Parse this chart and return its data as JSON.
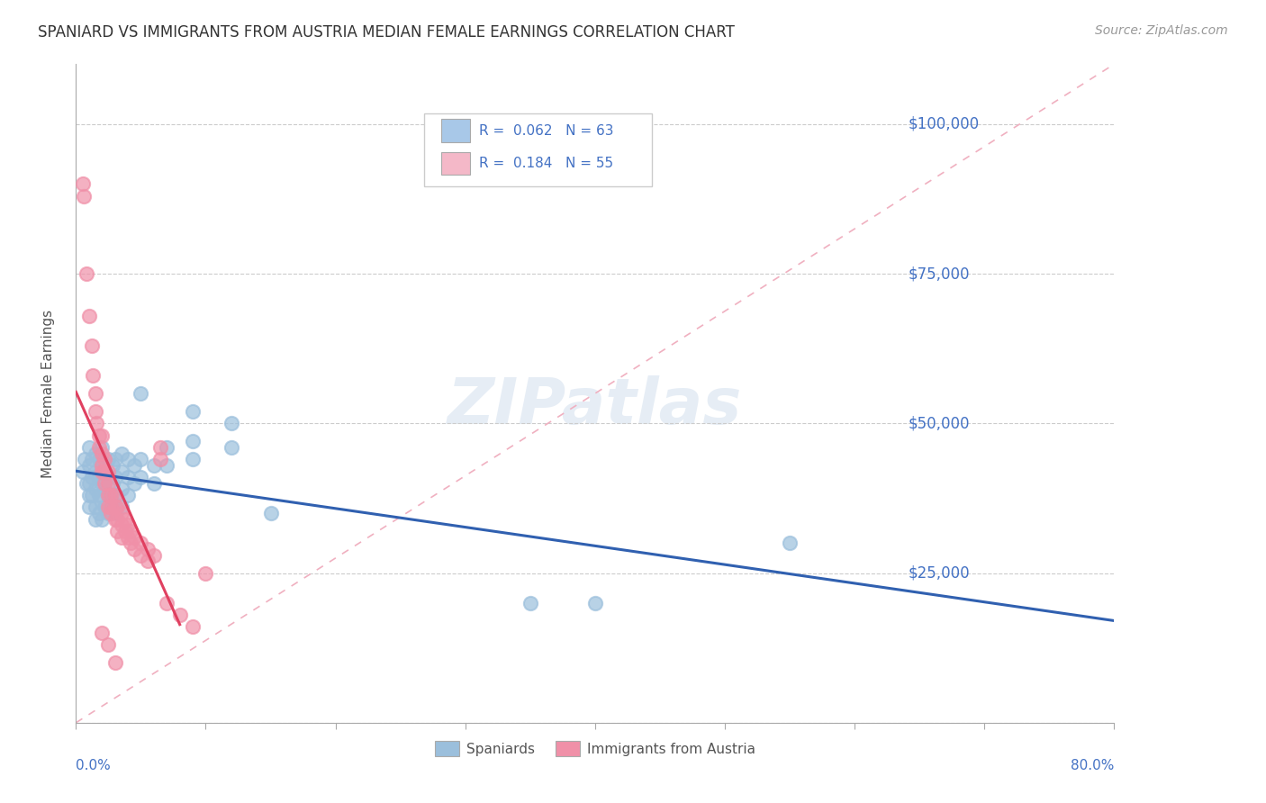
{
  "title": "SPANIARD VS IMMIGRANTS FROM AUSTRIA MEDIAN FEMALE EARNINGS CORRELATION CHART",
  "source_text": "Source: ZipAtlas.com",
  "ylabel": "Median Female Earnings",
  "y_ticks": [
    0,
    25000,
    50000,
    75000,
    100000
  ],
  "y_tick_labels": [
    "",
    "$25,000",
    "$50,000",
    "$75,000",
    "$100,000"
  ],
  "xlim": [
    0.0,
    0.8
  ],
  "ylim": [
    0,
    110000
  ],
  "watermark": "ZIPatlas",
  "legend_blue_color": "#a8c8e8",
  "legend_pink_color": "#f4b8c8",
  "spaniards_color": "#9bbfdc",
  "austria_color": "#f090a8",
  "title_color": "#333333",
  "axis_color": "#4472c4",
  "tick_color": "#4472c4",
  "grid_color": "#cccccc",
  "trend_blue_color": "#3060b0",
  "trend_pink_color": "#e04060",
  "trend_diagonal_color": "#f0b0c0",
  "spaniards_scatter": [
    [
      0.005,
      42000
    ],
    [
      0.007,
      44000
    ],
    [
      0.008,
      40000
    ],
    [
      0.01,
      46000
    ],
    [
      0.01,
      43000
    ],
    [
      0.01,
      40000
    ],
    [
      0.01,
      38000
    ],
    [
      0.01,
      36000
    ],
    [
      0.012,
      44000
    ],
    [
      0.012,
      41000
    ],
    [
      0.012,
      38000
    ],
    [
      0.015,
      45000
    ],
    [
      0.015,
      42000
    ],
    [
      0.015,
      39000
    ],
    [
      0.015,
      36000
    ],
    [
      0.015,
      34000
    ],
    [
      0.018,
      44000
    ],
    [
      0.018,
      41000
    ],
    [
      0.018,
      38000
    ],
    [
      0.018,
      35000
    ],
    [
      0.02,
      46000
    ],
    [
      0.02,
      43000
    ],
    [
      0.02,
      40000
    ],
    [
      0.02,
      37000
    ],
    [
      0.02,
      34000
    ],
    [
      0.022,
      42000
    ],
    [
      0.022,
      39000
    ],
    [
      0.022,
      36000
    ],
    [
      0.025,
      44000
    ],
    [
      0.025,
      41000
    ],
    [
      0.025,
      38000
    ],
    [
      0.025,
      35000
    ],
    [
      0.028,
      43000
    ],
    [
      0.028,
      40000
    ],
    [
      0.028,
      37000
    ],
    [
      0.03,
      44000
    ],
    [
      0.03,
      41000
    ],
    [
      0.03,
      38000
    ],
    [
      0.03,
      35000
    ],
    [
      0.035,
      45000
    ],
    [
      0.035,
      42000
    ],
    [
      0.035,
      39000
    ],
    [
      0.035,
      36000
    ],
    [
      0.04,
      44000
    ],
    [
      0.04,
      41000
    ],
    [
      0.04,
      38000
    ],
    [
      0.045,
      43000
    ],
    [
      0.045,
      40000
    ],
    [
      0.05,
      55000
    ],
    [
      0.05,
      44000
    ],
    [
      0.05,
      41000
    ],
    [
      0.06,
      43000
    ],
    [
      0.06,
      40000
    ],
    [
      0.07,
      46000
    ],
    [
      0.07,
      43000
    ],
    [
      0.09,
      52000
    ],
    [
      0.09,
      47000
    ],
    [
      0.09,
      44000
    ],
    [
      0.12,
      50000
    ],
    [
      0.12,
      46000
    ],
    [
      0.15,
      35000
    ],
    [
      0.35,
      20000
    ],
    [
      0.4,
      20000
    ],
    [
      0.55,
      30000
    ]
  ],
  "austria_scatter": [
    [
      0.005,
      90000
    ],
    [
      0.006,
      88000
    ],
    [
      0.008,
      75000
    ],
    [
      0.01,
      68000
    ],
    [
      0.012,
      63000
    ],
    [
      0.013,
      58000
    ],
    [
      0.015,
      55000
    ],
    [
      0.015,
      52000
    ],
    [
      0.016,
      50000
    ],
    [
      0.018,
      48000
    ],
    [
      0.018,
      46000
    ],
    [
      0.02,
      48000
    ],
    [
      0.02,
      45000
    ],
    [
      0.02,
      43000
    ],
    [
      0.02,
      42000
    ],
    [
      0.022,
      44000
    ],
    [
      0.022,
      42000
    ],
    [
      0.022,
      40000
    ],
    [
      0.025,
      42000
    ],
    [
      0.025,
      40000
    ],
    [
      0.025,
      38000
    ],
    [
      0.025,
      36000
    ],
    [
      0.027,
      38000
    ],
    [
      0.027,
      36000
    ],
    [
      0.027,
      35000
    ],
    [
      0.03,
      38000
    ],
    [
      0.03,
      36000
    ],
    [
      0.03,
      34000
    ],
    [
      0.032,
      36000
    ],
    [
      0.032,
      34000
    ],
    [
      0.032,
      32000
    ],
    [
      0.035,
      35000
    ],
    [
      0.035,
      33000
    ],
    [
      0.035,
      31000
    ],
    [
      0.038,
      34000
    ],
    [
      0.038,
      32000
    ],
    [
      0.04,
      33000
    ],
    [
      0.04,
      31000
    ],
    [
      0.042,
      32000
    ],
    [
      0.042,
      30000
    ],
    [
      0.045,
      31000
    ],
    [
      0.045,
      29000
    ],
    [
      0.05,
      30000
    ],
    [
      0.05,
      28000
    ],
    [
      0.055,
      29000
    ],
    [
      0.055,
      27000
    ],
    [
      0.06,
      28000
    ],
    [
      0.065,
      46000
    ],
    [
      0.065,
      44000
    ],
    [
      0.07,
      20000
    ],
    [
      0.08,
      18000
    ],
    [
      0.09,
      16000
    ],
    [
      0.1,
      25000
    ],
    [
      0.02,
      15000
    ],
    [
      0.025,
      13000
    ],
    [
      0.03,
      10000
    ]
  ]
}
